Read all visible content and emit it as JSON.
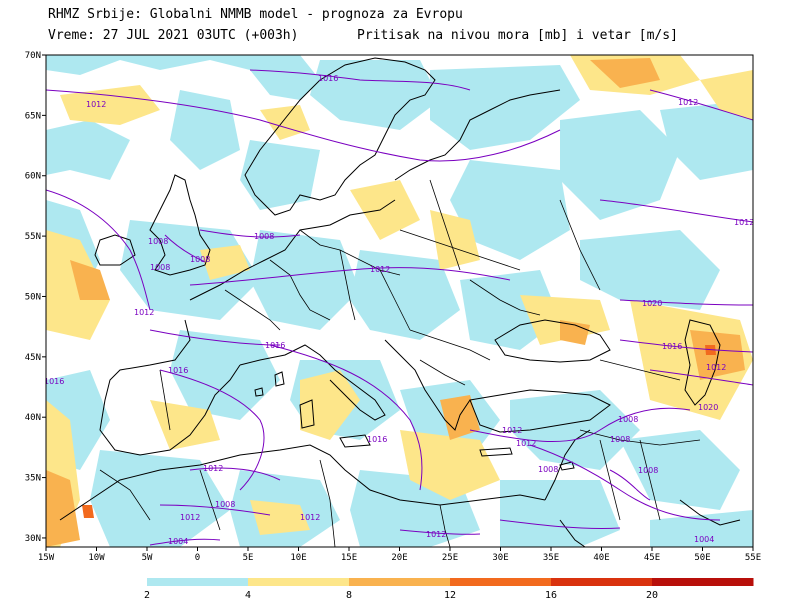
{
  "header": {
    "line1": "RHMZ Srbije: Globalni NMMB model - prognoza za Evropu",
    "line2": "Vreme: 27 JUL 2021 03UTC (+003h)",
    "line3": "Pritisak na nivou mora [mb] i vetar [m/s]"
  },
  "map": {
    "lat_labels": [
      "70N",
      "65N",
      "60N",
      "55N",
      "50N",
      "45N",
      "40N",
      "35N",
      "30N"
    ],
    "lon_labels": [
      "15W",
      "10W",
      "5W",
      "0",
      "5E",
      "10E",
      "15E",
      "20E",
      "25E",
      "30E",
      "35E",
      "40E",
      "45E",
      "50E",
      "55E"
    ],
    "isobar_labels": [
      "1016",
      "1012",
      "1012",
      "1008",
      "1008",
      "1008",
      "1012",
      "1016",
      "1012",
      "1016",
      "1016",
      "1012",
      "1020",
      "1016",
      "1012",
      "1012",
      "1008",
      "1008",
      "1016",
      "1012",
      "1008",
      "1012",
      "1008",
      "1004",
      "1008",
      "1012",
      "1008",
      "1004",
      "1020",
      "1012",
      "1012"
    ]
  },
  "colorbar": {
    "labels": [
      "2",
      "4",
      "8",
      "12",
      "16",
      "20"
    ],
    "colors": [
      "#aee8f0",
      "#fde68a",
      "#f9b24f",
      "#f26a1e",
      "#d9320e",
      "#b80f0a"
    ]
  },
  "colors": {
    "land_outline": "#000000",
    "isobar": "#7a00c0",
    "sea": "#ffffff"
  }
}
